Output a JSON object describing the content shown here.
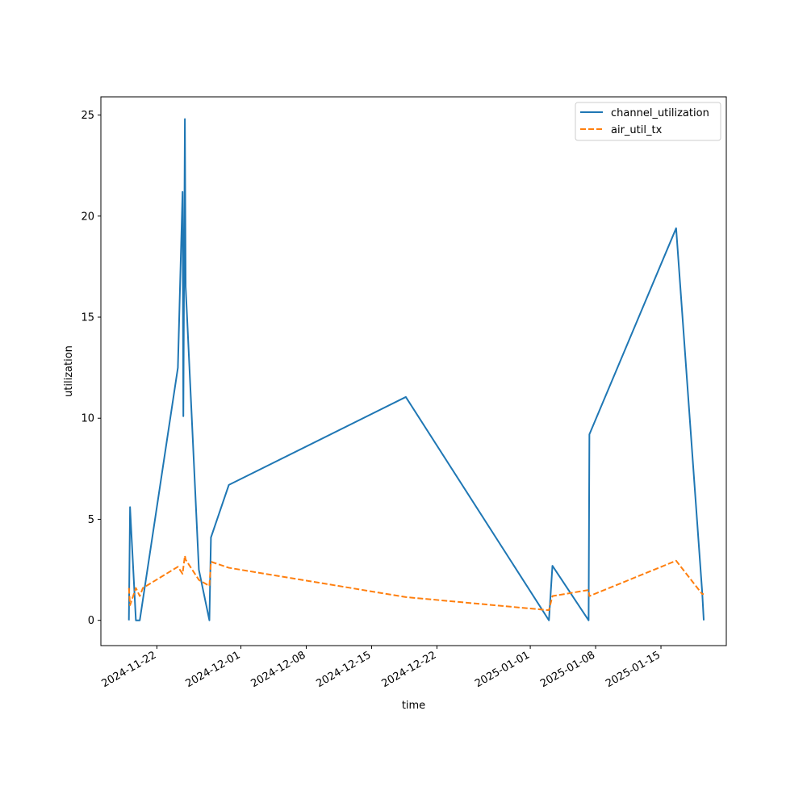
{
  "chart_data": {
    "type": "line",
    "xlabel": "time",
    "ylabel": "utilization",
    "x_tick_labels": [
      "2024-11-22",
      "2024-12-01",
      "2024-12-08",
      "2024-12-15",
      "2024-12-22",
      "2025-01-01",
      "2025-01-08",
      "2025-01-15"
    ],
    "y_tick_labels": [
      "0",
      "5",
      "10",
      "15",
      "20",
      "25"
    ],
    "ylim": [
      -1.25,
      25.9
    ],
    "xlim": [
      "2024-11-16T00:00",
      "2025-01-22T00:00"
    ],
    "grid": false,
    "legend_position": "top-right",
    "colors": {
      "channel_utilization": "#1f77b4",
      "air_util_tx": "#ff7f0e"
    },
    "series": [
      {
        "name": "channel_utilization",
        "style": "solid",
        "points": [
          [
            "2024-11-19T00:00",
            0.0
          ],
          [
            "2024-11-19T03:00",
            5.6
          ],
          [
            "2024-11-19T18:00",
            0.0
          ],
          [
            "2024-11-20T04:00",
            0.0
          ],
          [
            "2024-11-24T06:00",
            12.5
          ],
          [
            "2024-11-24T18:00",
            21.2
          ],
          [
            "2024-11-24T20:00",
            10.1
          ],
          [
            "2024-11-25T00:00",
            24.8
          ],
          [
            "2024-11-25T02:00",
            16.5
          ],
          [
            "2024-11-26T12:00",
            2.5
          ],
          [
            "2024-11-27T15:00",
            0.0
          ],
          [
            "2024-11-27T19:00",
            4.1
          ],
          [
            "2024-11-29T17:00",
            6.7
          ],
          [
            "2024-12-18T16:00",
            11.05
          ],
          [
            "2025-01-03T00:00",
            0.0
          ],
          [
            "2025-01-03T09:00",
            2.7
          ],
          [
            "2025-01-07T06:00",
            0.0
          ],
          [
            "2025-01-07T08:00",
            9.2
          ],
          [
            "2025-01-16T15:00",
            19.4
          ],
          [
            "2025-01-19T10:00",
            1.4
          ],
          [
            "2025-01-19T14:00",
            0.0
          ]
        ]
      },
      {
        "name": "air_util_tx",
        "style": "dashed",
        "points": [
          [
            "2024-11-19T00:00",
            1.6
          ],
          [
            "2024-11-19T03:00",
            0.75
          ],
          [
            "2024-11-19T18:00",
            1.6
          ],
          [
            "2024-11-20T04:00",
            1.2
          ],
          [
            "2024-11-20T12:00",
            1.6
          ],
          [
            "2024-11-24T06:00",
            2.65
          ],
          [
            "2024-11-24T18:00",
            2.3
          ],
          [
            "2024-11-25T00:00",
            3.2
          ],
          [
            "2024-11-25T02:00",
            3.0
          ],
          [
            "2024-11-26T12:00",
            2.0
          ],
          [
            "2024-11-27T15:00",
            1.7
          ],
          [
            "2024-11-27T19:00",
            2.9
          ],
          [
            "2024-11-29T17:00",
            2.6
          ],
          [
            "2024-12-18T16:00",
            1.15
          ],
          [
            "2025-01-03T00:00",
            0.5
          ],
          [
            "2025-01-03T09:00",
            1.2
          ],
          [
            "2025-01-07T06:00",
            1.5
          ],
          [
            "2025-01-07T08:00",
            1.2
          ],
          [
            "2025-01-16T15:00",
            2.95
          ],
          [
            "2025-01-19T10:00",
            1.3
          ],
          [
            "2025-01-19T14:00",
            1.3
          ]
        ]
      }
    ]
  }
}
